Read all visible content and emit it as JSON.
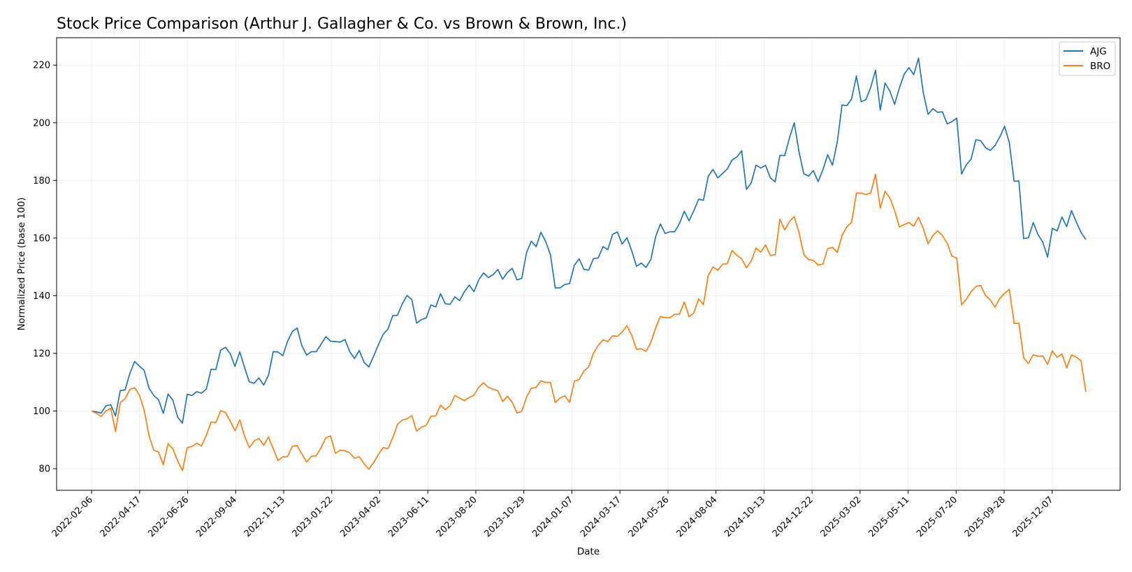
{
  "chart_data": {
    "type": "line",
    "title": "Stock Price Comparison (Arthur J. Gallagher & Co. vs Brown & Brown, Inc.)",
    "xlabel": "Date",
    "ylabel": "Normalized Price (base 100)",
    "x_start": "2022-02-06",
    "x_end": "2026-01-25",
    "x_range": [
      "2021-12-17",
      "2026-03-16"
    ],
    "ylim": [
      72.5,
      229.5
    ],
    "y_ticks": [
      80,
      100,
      120,
      140,
      160,
      180,
      200,
      220
    ],
    "x_ticks": [
      "2022-02-06",
      "2022-04-17",
      "2022-06-26",
      "2022-09-04",
      "2022-11-13",
      "2023-01-22",
      "2023-04-02",
      "2023-06-11",
      "2023-08-20",
      "2023-10-29",
      "2024-01-07",
      "2024-03-17",
      "2024-05-26",
      "2024-08-04",
      "2024-10-13",
      "2024-12-22",
      "2025-03-02",
      "2025-05-11",
      "2025-07-20",
      "2025-09-28",
      "2025-12-07"
    ],
    "grid": true,
    "legend_position": "top-right",
    "series": [
      {
        "name": "AJG",
        "color": "#1f77b4",
        "values": [
          100.0,
          99.7,
          99.3,
          101.8,
          102.2,
          98.3,
          107.1,
          107.3,
          113.0,
          117.2,
          115.6,
          114.1,
          108.0,
          105.4,
          103.9,
          99.2,
          105.9,
          103.8,
          97.9,
          95.8,
          105.8,
          105.4,
          106.7,
          106.2,
          107.6,
          114.5,
          114.4,
          121.1,
          122.1,
          119.9,
          115.5,
          120.5,
          115.1,
          110.1,
          109.6,
          111.5,
          109.0,
          112.4,
          120.6,
          120.5,
          119.2,
          124.2,
          127.6,
          128.8,
          122.6,
          119.4,
          120.6,
          120.6,
          123.1,
          125.8,
          124.2,
          124.1,
          123.9,
          124.8,
          120.6,
          118.2,
          121.0,
          116.9,
          115.3,
          119.0,
          123.0,
          126.6,
          128.4,
          133.1,
          133.2,
          137.2,
          140.1,
          138.6,
          130.5,
          131.7,
          132.3,
          136.8,
          136.1,
          140.7,
          137.2,
          137.0,
          139.6,
          138.3,
          141.4,
          143.7,
          141.4,
          145.5,
          147.9,
          146.3,
          147.3,
          149.1,
          145.7,
          148.1,
          149.5,
          145.5,
          146.0,
          155.0,
          158.9,
          157.0,
          162.0,
          158.8,
          154.2,
          142.7,
          142.7,
          143.9,
          144.2,
          150.6,
          152.8,
          149.1,
          148.9,
          152.9,
          153.1,
          157.0,
          156.0,
          161.3,
          162.1,
          157.9,
          160.1,
          155.6,
          150.2,
          151.3,
          149.8,
          152.6,
          160.5,
          164.9,
          161.6,
          162.2,
          162.2,
          165.1,
          169.3,
          166.0,
          169.5,
          173.5,
          173.1,
          181.4,
          183.8,
          180.9,
          182.4,
          184.0,
          187.1,
          188.1,
          190.3,
          176.9,
          179.1,
          185.3,
          184.3,
          185.2,
          180.9,
          179.5,
          188.7,
          188.6,
          194.7,
          200.0,
          189.9,
          182.3,
          181.5,
          183.4,
          179.6,
          183.7,
          188.9,
          185.3,
          193.3,
          206.2,
          205.9,
          208.3,
          216.2,
          207.3,
          208.0,
          212.3,
          218.2,
          204.4,
          213.8,
          211.0,
          206.4,
          212.1,
          216.8,
          219.1,
          216.7,
          222.4,
          210.4,
          202.9,
          204.9,
          203.6,
          203.8,
          199.6,
          200.4,
          201.6,
          182.2,
          185.4,
          187.4,
          194.1,
          193.8,
          191.4,
          190.4,
          192.1,
          195.0,
          198.8,
          193.1,
          179.7,
          179.8,
          159.8,
          160.1,
          165.4,
          161.2,
          158.6,
          153.4,
          163.4,
          162.5,
          167.3,
          164.0,
          169.5,
          165.6,
          162.0,
          159.5
        ]
      },
      {
        "name": "BRO",
        "color": "#ff7f0e",
        "values": [
          100.0,
          99.2,
          98.1,
          100.0,
          101.0,
          92.9,
          103.0,
          104.2,
          107.5,
          108.1,
          105.5,
          100.3,
          91.6,
          86.4,
          85.8,
          81.4,
          88.7,
          86.9,
          82.7,
          79.3,
          87.3,
          87.7,
          88.8,
          87.9,
          91.6,
          96.2,
          96.0,
          100.1,
          99.5,
          96.5,
          93.2,
          96.9,
          91.3,
          87.3,
          89.6,
          90.5,
          88.1,
          91.0,
          86.9,
          82.8,
          84.1,
          84.2,
          87.8,
          88.0,
          85.1,
          82.3,
          84.3,
          84.5,
          87.2,
          90.7,
          91.4,
          85.3,
          86.4,
          86.2,
          85.5,
          83.6,
          84.1,
          81.7,
          79.8,
          82.1,
          84.9,
          87.3,
          86.9,
          90.7,
          95.4,
          96.8,
          97.3,
          98.4,
          93.0,
          94.4,
          95.0,
          98.2,
          98.3,
          102.0,
          100.5,
          101.9,
          105.4,
          104.5,
          103.6,
          104.7,
          105.5,
          108.2,
          109.8,
          108.2,
          107.6,
          107.0,
          103.3,
          105.1,
          103.1,
          99.3,
          99.9,
          104.8,
          107.9,
          108.2,
          110.5,
          109.9,
          109.9,
          102.9,
          104.5,
          105.3,
          103.0,
          110.4,
          110.9,
          113.9,
          115.3,
          120.1,
          122.7,
          124.7,
          124.1,
          126.1,
          125.9,
          127.4,
          129.6,
          126.3,
          121.4,
          121.6,
          120.7,
          123.8,
          128.8,
          132.8,
          132.4,
          132.4,
          133.6,
          133.6,
          137.8,
          132.7,
          134.0,
          138.9,
          136.9,
          147.0,
          150.0,
          148.8,
          150.9,
          151.1,
          155.7,
          154.0,
          152.8,
          149.7,
          152.0,
          156.5,
          155.1,
          157.6,
          154.0,
          154.2,
          166.6,
          162.8,
          165.7,
          167.5,
          161.9,
          154.3,
          152.5,
          152.3,
          150.6,
          151.0,
          156.3,
          156.8,
          155.0,
          160.9,
          163.9,
          165.5,
          175.6,
          175.6,
          175.1,
          175.6,
          182.1,
          170.4,
          176.2,
          173.9,
          169.5,
          163.8,
          164.7,
          165.4,
          164.1,
          167.2,
          163.3,
          158.0,
          160.9,
          162.5,
          160.9,
          158.2,
          153.7,
          153.1,
          136.8,
          138.8,
          141.4,
          143.2,
          143.6,
          140.1,
          138.6,
          136.0,
          139.1,
          140.8,
          142.2,
          130.4,
          130.4,
          118.4,
          116.5,
          119.5,
          119.0,
          119.1,
          116.2,
          120.9,
          118.6,
          119.8,
          115.0,
          119.5,
          118.7,
          117.4,
          106.7
        ]
      }
    ]
  }
}
